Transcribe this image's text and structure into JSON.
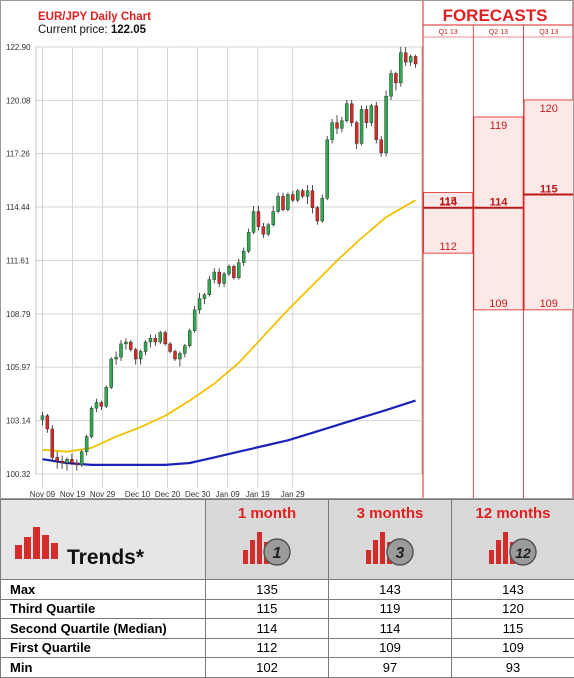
{
  "header": {
    "title": "EUR/JPY Daily Chart",
    "price_label": "Current price: ",
    "price_value": "122.05"
  },
  "forecasts_title": "FORECASTS",
  "colors": {
    "red": "#e02020",
    "candle_up": "#2fa84f",
    "candle_down": "#d62a2a",
    "ma_short": "#f2c200",
    "ma_long": "#1c22b8",
    "forecast_fill": "#fde8e8"
  },
  "chart_data": {
    "type": "candlestick",
    "title": "EUR/JPY Daily Chart",
    "y_ticks": [
      "122.90",
      "120.08",
      "117.26",
      "114.44",
      "111.61",
      "108.79",
      "105.97",
      "103.14",
      "100.32"
    ],
    "ylim": [
      100.32,
      122.9
    ],
    "x_ticks": [
      "Nov 09",
      "Nov 19",
      "Nov 29",
      "Dec 10",
      "Dec 20",
      "Dec 30",
      "Jan 09",
      "Jan 19",
      "Jan 29"
    ],
    "candles": [
      [
        103.2,
        103.6,
        102.9,
        103.4
      ],
      [
        103.4,
        103.5,
        102.5,
        102.7
      ],
      [
        102.7,
        102.9,
        101.0,
        101.2
      ],
      [
        101.2,
        101.5,
        100.6,
        101.0
      ],
      [
        101.0,
        101.3,
        100.6,
        100.9
      ],
      [
        100.9,
        101.2,
        100.5,
        101.1
      ],
      [
        101.1,
        101.4,
        100.8,
        100.9
      ],
      [
        100.9,
        101.1,
        100.5,
        100.8
      ],
      [
        100.8,
        101.6,
        100.7,
        101.5
      ],
      [
        101.5,
        102.4,
        101.3,
        102.3
      ],
      [
        102.3,
        103.9,
        102.2,
        103.8
      ],
      [
        103.8,
        104.3,
        103.6,
        104.1
      ],
      [
        104.1,
        104.2,
        103.7,
        103.9
      ],
      [
        103.9,
        105.0,
        103.8,
        104.9
      ],
      [
        104.9,
        106.5,
        104.8,
        106.4
      ],
      [
        106.4,
        106.8,
        106.1,
        106.5
      ],
      [
        106.5,
        107.4,
        106.3,
        107.2
      ],
      [
        107.2,
        107.5,
        106.9,
        107.3
      ],
      [
        107.3,
        107.4,
        106.8,
        106.9
      ],
      [
        106.9,
        107.0,
        106.1,
        106.4
      ],
      [
        106.4,
        106.9,
        106.1,
        106.8
      ],
      [
        106.8,
        107.4,
        106.6,
        107.3
      ],
      [
        107.3,
        107.7,
        107.0,
        107.5
      ],
      [
        107.5,
        107.7,
        107.1,
        107.3
      ],
      [
        107.3,
        107.9,
        107.2,
        107.8
      ],
      [
        107.8,
        107.9,
        107.1,
        107.2
      ],
      [
        107.2,
        107.3,
        106.7,
        106.8
      ],
      [
        106.8,
        106.9,
        106.3,
        106.4
      ],
      [
        106.4,
        106.8,
        106.0,
        106.7
      ],
      [
        106.7,
        107.2,
        106.5,
        107.1
      ],
      [
        107.1,
        108.0,
        107.0,
        107.9
      ],
      [
        107.9,
        109.2,
        107.8,
        109.0
      ],
      [
        109.0,
        109.9,
        108.8,
        109.6
      ],
      [
        109.6,
        109.9,
        109.3,
        109.8
      ],
      [
        109.8,
        110.8,
        109.7,
        110.6
      ],
      [
        110.6,
        111.2,
        110.4,
        111.0
      ],
      [
        111.0,
        111.2,
        110.2,
        110.4
      ],
      [
        110.4,
        111.0,
        110.2,
        110.9
      ],
      [
        110.9,
        111.4,
        110.8,
        111.3
      ],
      [
        111.3,
        111.4,
        110.6,
        110.7
      ],
      [
        110.7,
        111.7,
        110.6,
        111.5
      ],
      [
        111.5,
        112.3,
        111.3,
        112.1
      ],
      [
        112.1,
        113.3,
        112.0,
        113.1
      ],
      [
        113.1,
        114.5,
        113.0,
        114.2
      ],
      [
        114.2,
        114.5,
        113.2,
        113.4
      ],
      [
        113.4,
        113.6,
        112.8,
        113.0
      ],
      [
        113.0,
        113.6,
        112.9,
        113.5
      ],
      [
        113.5,
        114.5,
        113.4,
        114.2
      ],
      [
        114.2,
        115.2,
        114.1,
        115.0
      ],
      [
        115.0,
        115.2,
        114.2,
        114.3
      ],
      [
        114.3,
        115.2,
        114.2,
        115.1
      ],
      [
        115.1,
        115.3,
        114.7,
        114.8
      ],
      [
        114.8,
        115.4,
        114.7,
        115.3
      ],
      [
        115.3,
        115.4,
        114.9,
        115.0
      ],
      [
        115.0,
        115.6,
        114.6,
        115.3
      ],
      [
        115.3,
        115.6,
        114.1,
        114.4
      ],
      [
        114.4,
        114.5,
        113.5,
        113.7
      ],
      [
        113.7,
        115.1,
        113.6,
        114.9
      ],
      [
        114.9,
        118.2,
        114.8,
        118.0
      ],
      [
        118.0,
        119.1,
        117.8,
        118.9
      ],
      [
        118.9,
        119.3,
        118.3,
        118.6
      ],
      [
        118.6,
        119.2,
        118.4,
        119.0
      ],
      [
        119.0,
        120.1,
        118.9,
        119.9
      ],
      [
        119.9,
        120.1,
        118.7,
        118.9
      ],
      [
        118.9,
        119.0,
        117.5,
        117.8
      ],
      [
        117.8,
        119.8,
        117.7,
        119.6
      ],
      [
        119.6,
        119.8,
        118.6,
        118.9
      ],
      [
        118.9,
        119.9,
        118.7,
        119.8
      ],
      [
        119.8,
        120.0,
        117.8,
        118.0
      ],
      [
        118.0,
        118.2,
        117.1,
        117.3
      ],
      [
        117.3,
        120.6,
        117.1,
        120.3
      ],
      [
        120.3,
        121.7,
        120.1,
        121.5
      ],
      [
        121.5,
        121.6,
        120.6,
        121.0
      ],
      [
        121.0,
        122.9,
        120.8,
        122.6
      ],
      [
        122.6,
        122.9,
        121.9,
        122.1
      ],
      [
        122.1,
        122.5,
        121.9,
        122.4
      ],
      [
        122.4,
        122.5,
        121.8,
        122.0
      ]
    ],
    "ma_short": [
      [
        0,
        101.6
      ],
      [
        5,
        101.5
      ],
      [
        10,
        101.7
      ],
      [
        15,
        102.3
      ],
      [
        20,
        102.8
      ],
      [
        25,
        103.4
      ],
      [
        30,
        104.2
      ],
      [
        35,
        105.1
      ],
      [
        40,
        106.2
      ],
      [
        45,
        107.6
      ],
      [
        50,
        109.0
      ],
      [
        55,
        110.3
      ],
      [
        60,
        111.6
      ],
      [
        65,
        112.8
      ],
      [
        70,
        113.9
      ],
      [
        76,
        114.8
      ]
    ],
    "ma_long": [
      [
        0,
        101.1
      ],
      [
        5,
        100.9
      ],
      [
        10,
        100.8
      ],
      [
        15,
        100.8
      ],
      [
        20,
        100.8
      ],
      [
        25,
        100.8
      ],
      [
        30,
        100.9
      ],
      [
        35,
        101.2
      ],
      [
        40,
        101.5
      ],
      [
        45,
        101.8
      ],
      [
        50,
        102.1
      ],
      [
        55,
        102.5
      ],
      [
        60,
        102.9
      ],
      [
        65,
        103.3
      ],
      [
        70,
        103.7
      ],
      [
        76,
        104.2
      ]
    ]
  },
  "forecast_columns": [
    {
      "label": "Q1 13",
      "third": "115",
      "median": "114",
      "first": "112",
      "third_v": 115.2,
      "median_v": 114.4,
      "first_v": 112.0
    },
    {
      "label": "Q2 13",
      "third": "119",
      "median": "114",
      "first": "109",
      "third_v": 119.2,
      "median_v": 114.4,
      "first_v": 109.0
    },
    {
      "label": "Q3 13",
      "third": "120",
      "median": "115",
      "first": "109",
      "third_v": 120.1,
      "median_v": 115.1,
      "first_v": 109.0
    }
  ],
  "trends": {
    "title": "Trends*",
    "columns": [
      {
        "label": "1 month",
        "icon_number": "1"
      },
      {
        "label": "3 months",
        "icon_number": "3"
      },
      {
        "label": "12 months",
        "icon_number": "12"
      }
    ],
    "rows": [
      {
        "label": "Max",
        "values": [
          "135",
          "143",
          "143"
        ]
      },
      {
        "label": "Third Quartile",
        "values": [
          "115",
          "119",
          "120"
        ]
      },
      {
        "label": "Second Quartile (Median)",
        "values": [
          "114",
          "114",
          "115"
        ]
      },
      {
        "label": "First Quartile",
        "values": [
          "112",
          "109",
          "109"
        ]
      },
      {
        "label": "Min",
        "values": [
          "102",
          "97",
          "93"
        ]
      }
    ]
  }
}
